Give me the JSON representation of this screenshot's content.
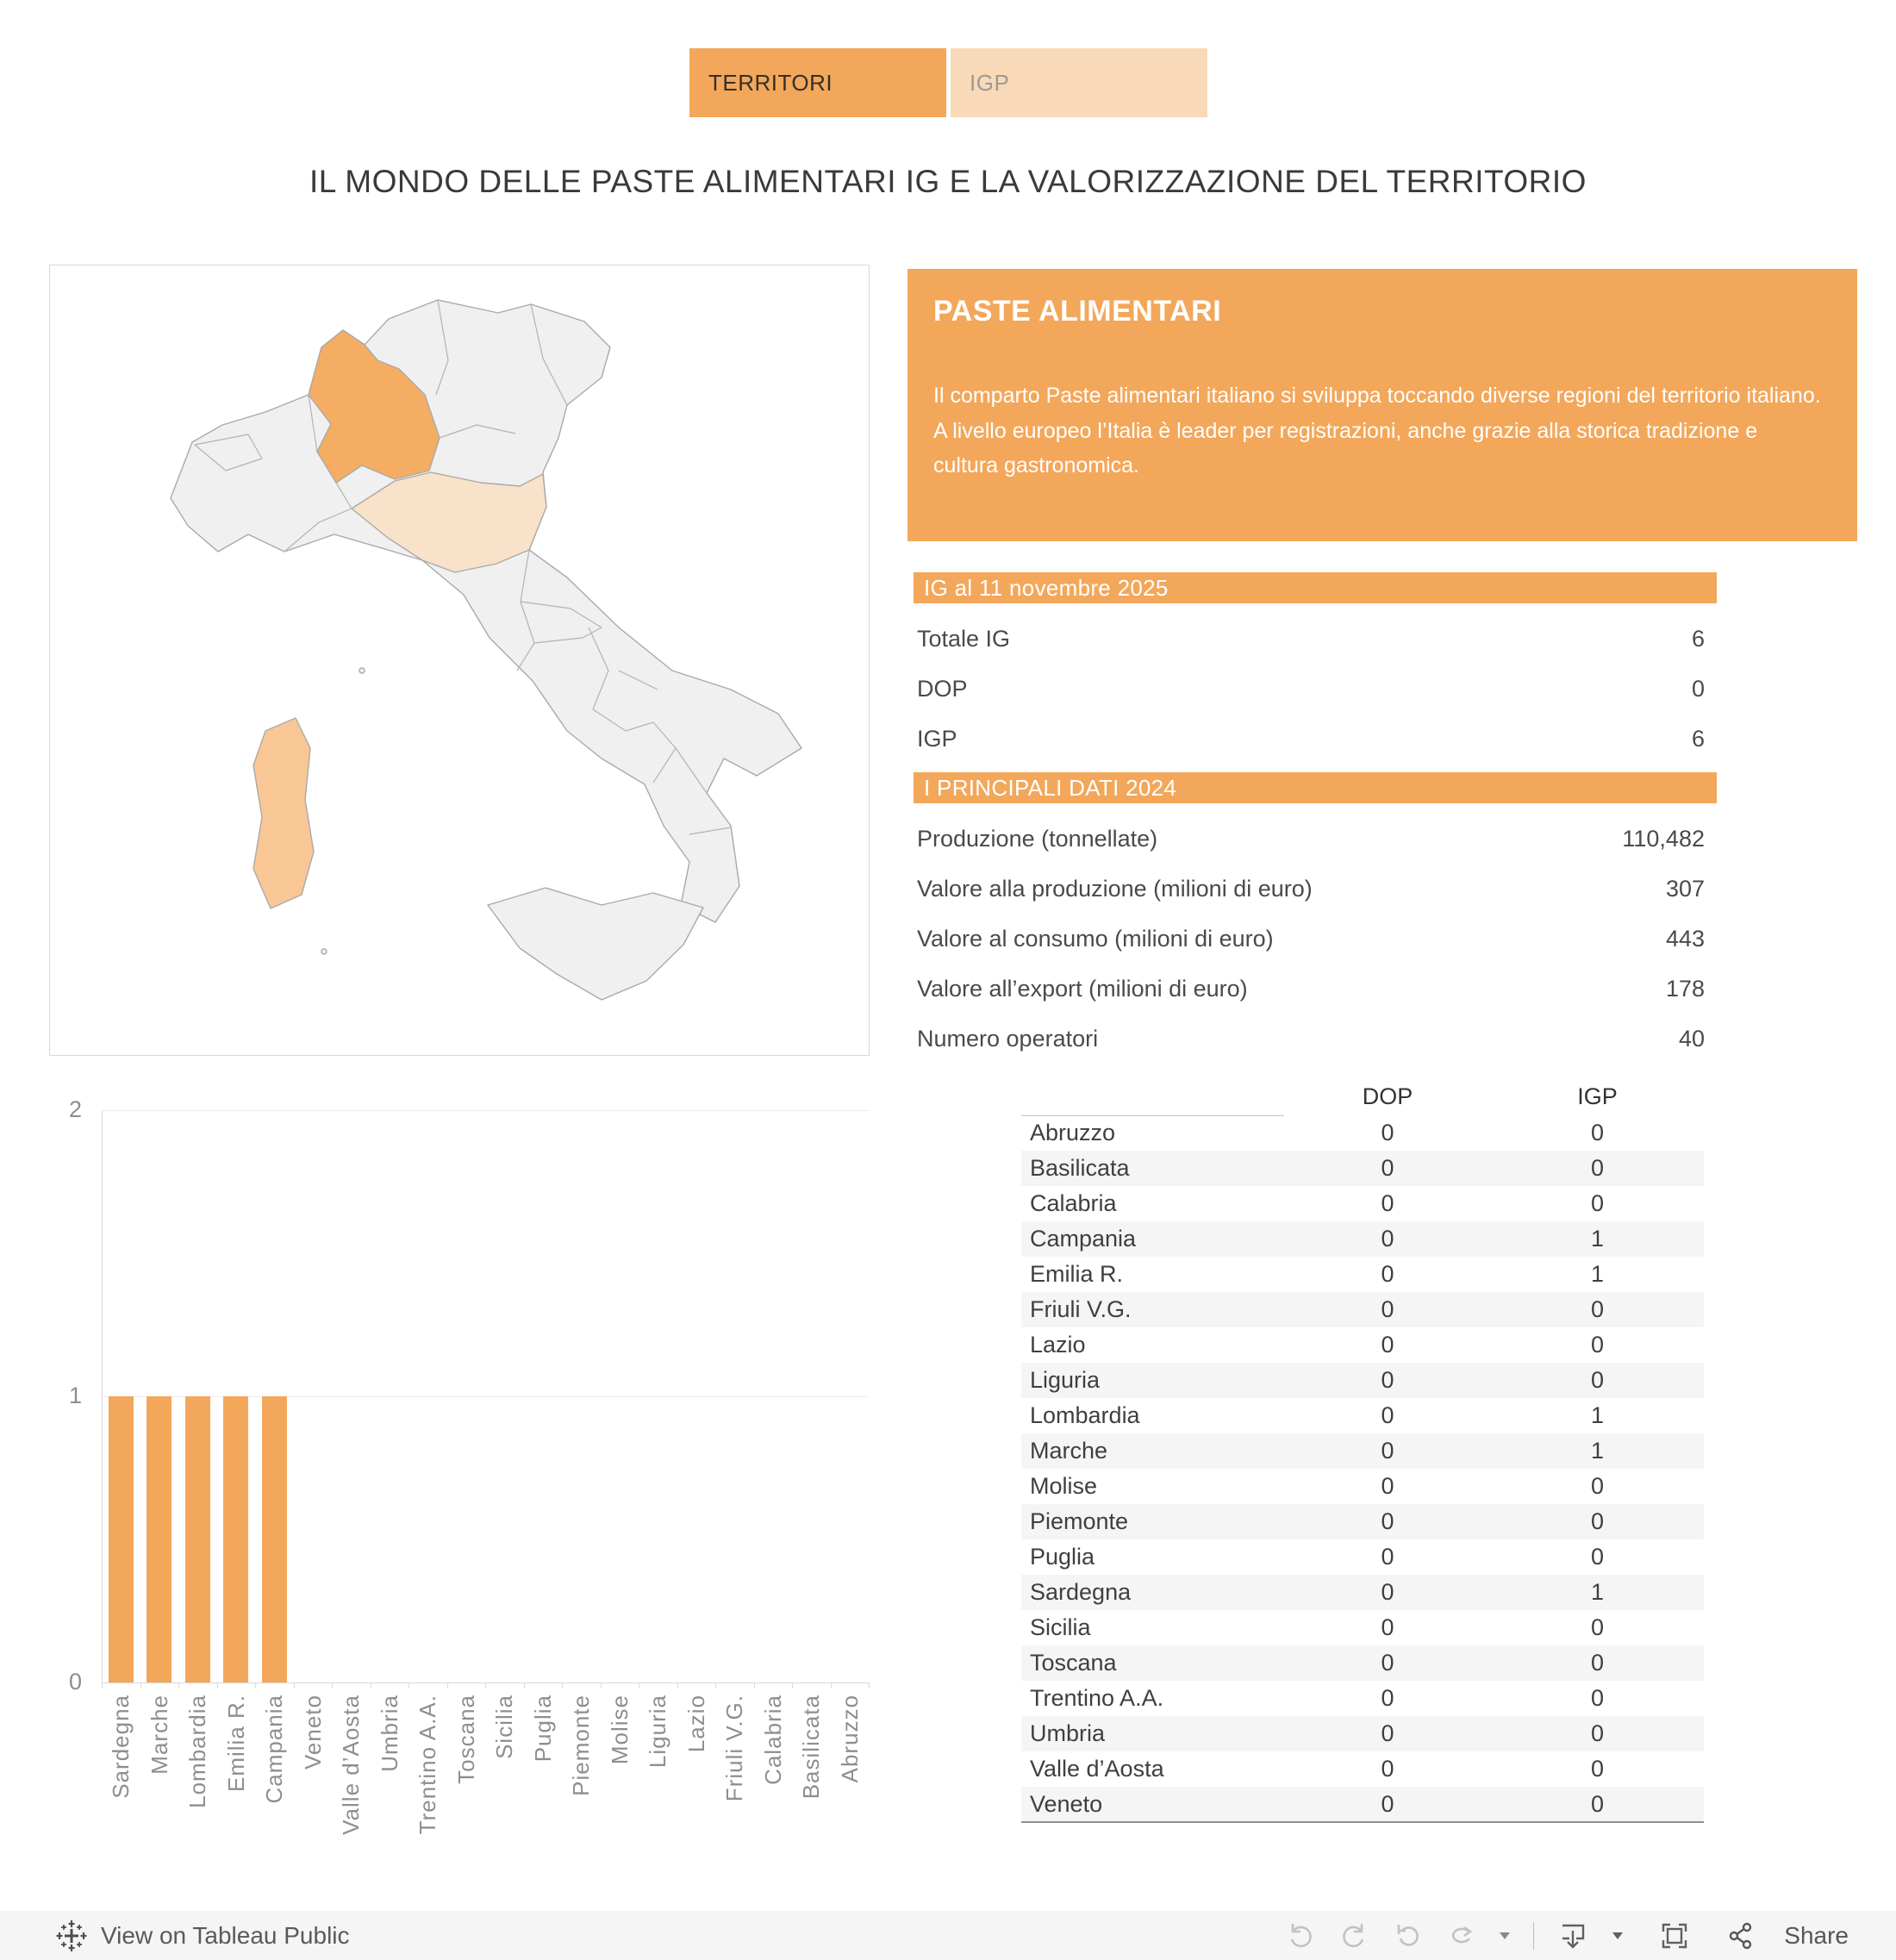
{
  "tabs": [
    {
      "label": "TERRITORI",
      "active": true
    },
    {
      "label": "IGP",
      "active": false
    }
  ],
  "title": "IL MONDO DELLE PASTE ALIMENTARI IG E LA VALORIZZAZIONE DEL TERRITORIO",
  "info_panel": {
    "title": "PASTE ALIMENTARI",
    "body": "Il comparto Paste alimentari italiano si sviluppa toccando diverse regioni del territorio italiano. A livello europeo l’Italia è leader per registrazioni, anche grazie alla storica tradizione e cultura gastronomica."
  },
  "ig_section": {
    "header": "IG al 11 novembre 2025",
    "rows": [
      {
        "label": "Totale IG",
        "value": "6"
      },
      {
        "label": "DOP",
        "value": "0"
      },
      {
        "label": "IGP",
        "value": "6"
      }
    ]
  },
  "dati_section": {
    "header": "I PRINCIPALI DATI 2024",
    "rows": [
      {
        "label": "Produzione (tonnellate)",
        "value": "110,482"
      },
      {
        "label": "Valore alla produzione (milioni di euro)",
        "value": "307"
      },
      {
        "label": "Valore al consumo (milioni di euro)",
        "value": "443"
      },
      {
        "label": "Valore all’export (milioni di euro)",
        "value": "178"
      },
      {
        "label": "Numero operatori",
        "value": "40"
      }
    ]
  },
  "chart_data": [
    {
      "type": "bar",
      "title": "",
      "categories": [
        "Sardegna",
        "Marche",
        "Lombardia",
        "Emilia R.",
        "Campania",
        "Veneto",
        "Valle d’Aosta",
        "Umbria",
        "Trentino A.A.",
        "Toscana",
        "Sicilia",
        "Puglia",
        "Piemonte",
        "Molise",
        "Liguria",
        "Lazio",
        "Friuli V.G.",
        "Calabria",
        "Basilicata",
        "Abruzzo"
      ],
      "values": [
        1,
        1,
        1,
        1,
        1,
        0,
        0,
        0,
        0,
        0,
        0,
        0,
        0,
        0,
        0,
        0,
        0,
        0,
        0,
        0
      ],
      "xlabel": "",
      "ylabel": "",
      "ylim": [
        0,
        2
      ],
      "yticks": [
        0,
        1,
        2
      ],
      "grid": true,
      "bar_color": "#F3A75A"
    },
    {
      "type": "table",
      "columns": [
        "",
        "DOP",
        "IGP"
      ],
      "rows": [
        [
          "Abruzzo",
          "0",
          "0"
        ],
        [
          "Basilicata",
          "0",
          "0"
        ],
        [
          "Calabria",
          "0",
          "0"
        ],
        [
          "Campania",
          "0",
          "1"
        ],
        [
          "Emilia R.",
          "0",
          "1"
        ],
        [
          "Friuli V.G.",
          "0",
          "0"
        ],
        [
          "Lazio",
          "0",
          "0"
        ],
        [
          "Liguria",
          "0",
          "0"
        ],
        [
          "Lombardia",
          "0",
          "1"
        ],
        [
          "Marche",
          "0",
          "1"
        ],
        [
          "Molise",
          "0",
          "0"
        ],
        [
          "Piemonte",
          "0",
          "0"
        ],
        [
          "Puglia",
          "0",
          "0"
        ],
        [
          "Sardegna",
          "0",
          "1"
        ],
        [
          "Sicilia",
          "0",
          "0"
        ],
        [
          "Toscana",
          "0",
          "0"
        ],
        [
          "Trentino A.A.",
          "0",
          "0"
        ],
        [
          "Umbria",
          "0",
          "0"
        ],
        [
          "Valle d’Aosta",
          "0",
          "0"
        ],
        [
          "Veneto",
          "0",
          "0"
        ]
      ]
    }
  ],
  "map": {
    "base_color": "#F0F0F0",
    "highlighted_regions": [
      {
        "name": "Lombardia",
        "fill": "#F5AD63"
      },
      {
        "name": "Emilia Romagna",
        "fill": "#F8E2C9"
      },
      {
        "name": "Sardegna",
        "fill": "#F9C795"
      }
    ]
  },
  "colors": {
    "accent": "#F3A75A",
    "accent_light": "#F8D9B8"
  },
  "footer": {
    "attribution": "View on Tableau Public",
    "share_label": "Share"
  }
}
